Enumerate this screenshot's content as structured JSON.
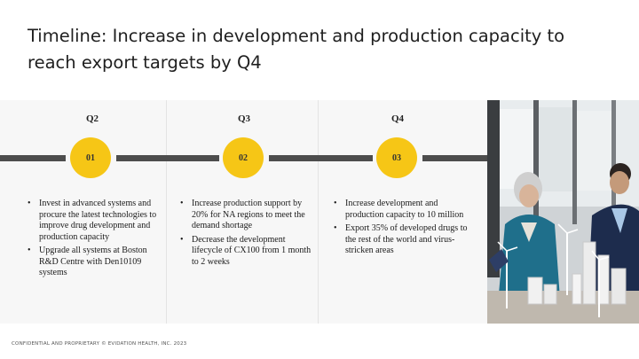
{
  "slide": {
    "title": "Timeline: Increase in development and production capacity to reach export targets by Q4",
    "footer": "CONFIDENTIAL AND PROPRIETARY © EVIDATION HEALTH, INC. 2023"
  },
  "timeline": {
    "steps": [
      {
        "quarter": "Q2",
        "number": "01",
        "bullets": [
          "Invest in advanced systems and procure the latest technologies to improve drug development and production capacity",
          "Upgrade all systems at Boston R&D Centre with Den10109 systems"
        ]
      },
      {
        "quarter": "Q3",
        "number": "02",
        "bullets": [
          "Increase production support by 20% for NA regions to meet the demand shortage",
          "Decrease the development lifecycle of CX100 from 1 month to 2 weeks"
        ]
      },
      {
        "quarter": "Q4",
        "number": "03",
        "bullets": [
          "Increase development and production capacity to 10 million",
          "Export 35% of developed drugs to the rest of the world and virus-stricken areas"
        ]
      }
    ]
  },
  "colors": {
    "accent": "#f6c616",
    "line": "#4d4d4d",
    "panel": "#f7f7f7"
  },
  "photo": {
    "icon": "people-with-building-models-photo"
  }
}
